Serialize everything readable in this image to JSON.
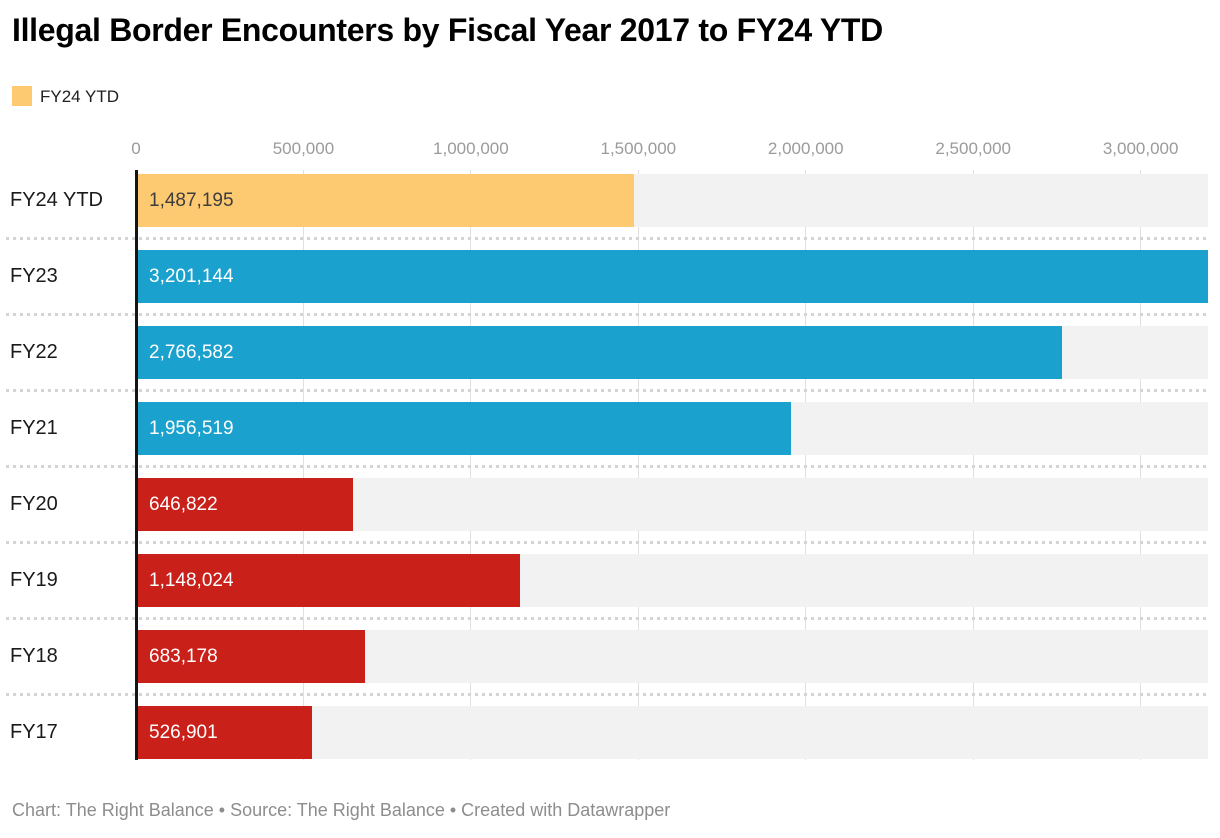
{
  "title": "Illegal Border Encounters by Fiscal Year 2017 to FY24 YTD",
  "legend": {
    "label": "FY24 YTD",
    "swatch_color": "#fdc971"
  },
  "chart_data": {
    "type": "bar",
    "orientation": "horizontal",
    "title": "Illegal Border Encounters by Fiscal Year 2017 to FY24 YTD",
    "categories": [
      "FY24 YTD",
      "FY23",
      "FY22",
      "FY21",
      "FY20",
      "FY19",
      "FY18",
      "FY17"
    ],
    "values": [
      1487195,
      3201144,
      2766582,
      1956519,
      646822,
      1148024,
      683178,
      526901
    ],
    "value_labels": [
      "1,487,195",
      "3,201,144",
      "2,766,582",
      "1,956,519",
      "646,822",
      "1,148,024",
      "683,178",
      "526,901"
    ],
    "bar_colors": [
      "#fdc971",
      "#1aa1cd",
      "#1aa1cd",
      "#1aa1cd",
      "#c9201a",
      "#c9201a",
      "#c9201a",
      "#c9201a"
    ],
    "value_label_colors": [
      "#3d3d3d",
      "#ffffff",
      "#ffffff",
      "#ffffff",
      "#ffffff",
      "#ffffff",
      "#ffffff",
      "#ffffff"
    ],
    "xlim": [
      0,
      3201144
    ],
    "x_ticks": [
      0,
      500000,
      1000000,
      1500000,
      2000000,
      2500000,
      3000000
    ],
    "x_tick_labels": [
      "0",
      "500,000",
      "1,000,000",
      "1,500,000",
      "2,000,000",
      "2,500,000",
      "3,000,000"
    ],
    "xlabel": "",
    "ylabel": "",
    "grid": true,
    "legend_position": "top-left",
    "track_color": "#f2f2f2",
    "gridline_color": "#e0e0e0",
    "baseline_color": "#141414"
  },
  "footer": {
    "credit": "Chart: The Right Balance • Source: The Right Balance • Created with Datawrapper"
  }
}
